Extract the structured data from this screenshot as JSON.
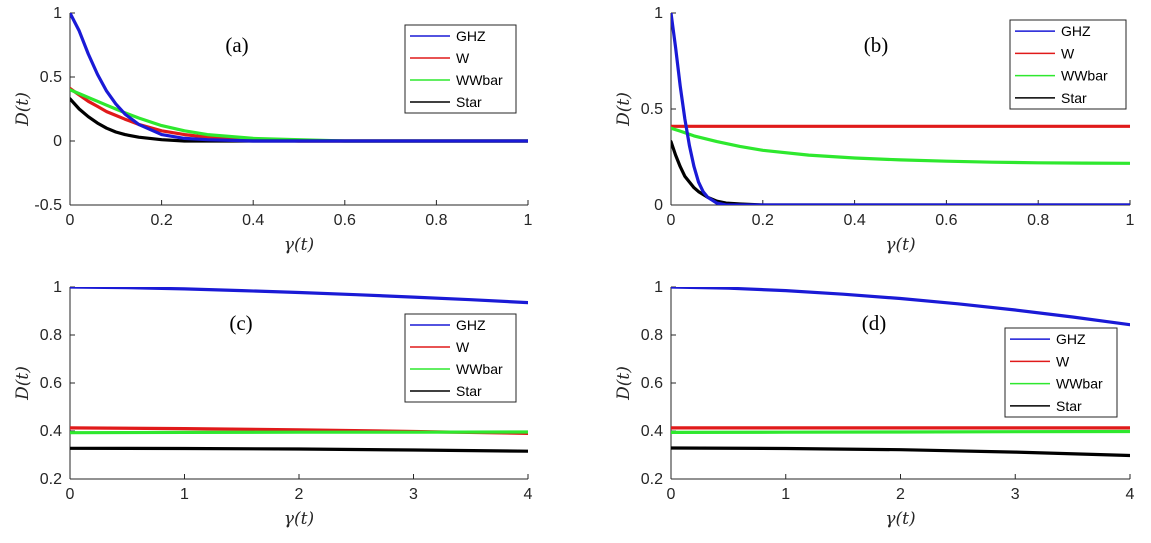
{
  "colors": {
    "GHZ": "#1a1ad6",
    "W": "#e01a1a",
    "WWbar": "#2ee82e",
    "Star": "#000000"
  },
  "chart_data": [
    {
      "type": "line",
      "panel_label": "(a)",
      "xlabel": "γ(t)",
      "ylabel": "D(t)",
      "xlim": [
        0,
        1
      ],
      "ylim": [
        -0.5,
        1
      ],
      "xticks": [
        0,
        0.2,
        0.4,
        0.6,
        0.8,
        1
      ],
      "xtick_labels": [
        "0",
        "0.2",
        "0.4",
        "0.6",
        "0.8",
        "1"
      ],
      "yticks": [
        -0.5,
        0,
        0.5,
        1
      ],
      "ytick_labels": [
        "-0.5",
        "0",
        "0.5",
        "1"
      ],
      "legend": [
        "GHZ",
        "W",
        "WWbar",
        "Star"
      ],
      "legend_position": "top-right",
      "series": [
        {
          "name": "GHZ",
          "x": [
            0,
            0.02,
            0.04,
            0.06,
            0.08,
            0.1,
            0.12,
            0.15,
            0.2,
            0.25,
            0.3,
            0.4,
            0.5,
            0.6,
            0.8,
            1
          ],
          "y": [
            1,
            0.86,
            0.68,
            0.52,
            0.39,
            0.29,
            0.21,
            0.13,
            0.05,
            0.02,
            0.01,
            0,
            0,
            0,
            0,
            0
          ]
        },
        {
          "name": "W",
          "x": [
            0,
            0.02,
            0.04,
            0.06,
            0.08,
            0.1,
            0.12,
            0.15,
            0.2,
            0.25,
            0.3,
            0.4,
            0.5,
            0.6,
            0.8,
            1
          ],
          "y": [
            0.41,
            0.36,
            0.31,
            0.27,
            0.23,
            0.2,
            0.17,
            0.13,
            0.08,
            0.05,
            0.03,
            0.01,
            0,
            0,
            0,
            0
          ]
        },
        {
          "name": "WWbar",
          "x": [
            0,
            0.02,
            0.04,
            0.06,
            0.08,
            0.1,
            0.12,
            0.15,
            0.2,
            0.25,
            0.3,
            0.4,
            0.5,
            0.6,
            0.8,
            1
          ],
          "y": [
            0.4,
            0.37,
            0.34,
            0.31,
            0.28,
            0.25,
            0.22,
            0.18,
            0.12,
            0.08,
            0.05,
            0.02,
            0.01,
            0,
            0,
            0
          ]
        },
        {
          "name": "Star",
          "x": [
            0,
            0.02,
            0.04,
            0.06,
            0.08,
            0.1,
            0.12,
            0.15,
            0.2,
            0.25,
            0.3,
            0.4,
            0.5,
            0.6,
            0.8,
            1
          ],
          "y": [
            0.33,
            0.25,
            0.19,
            0.14,
            0.1,
            0.07,
            0.05,
            0.03,
            0.01,
            0,
            0,
            0,
            0,
            0,
            0,
            0
          ]
        }
      ]
    },
    {
      "type": "line",
      "panel_label": "(b)",
      "xlabel": "γ(t)",
      "ylabel": "D(t)",
      "xlim": [
        0,
        1
      ],
      "ylim": [
        0,
        1
      ],
      "xticks": [
        0,
        0.2,
        0.4,
        0.6,
        0.8,
        1
      ],
      "xtick_labels": [
        "0",
        "0.2",
        "0.4",
        "0.6",
        "0.8",
        "1"
      ],
      "yticks": [
        0,
        0.5,
        1
      ],
      "ytick_labels": [
        "0",
        "0.5",
        "1"
      ],
      "legend": [
        "GHZ",
        "W",
        "WWbar",
        "Star"
      ],
      "legend_position": "top-right",
      "series": [
        {
          "name": "GHZ",
          "x": [
            0,
            0.01,
            0.02,
            0.03,
            0.04,
            0.05,
            0.06,
            0.07,
            0.08,
            0.1,
            0.12,
            0.15,
            0.2,
            0.4,
            1
          ],
          "y": [
            1,
            0.82,
            0.62,
            0.45,
            0.31,
            0.2,
            0.12,
            0.07,
            0.04,
            0.01,
            0,
            0,
            0,
            0,
            0
          ]
        },
        {
          "name": "W",
          "x": [
            0,
            1
          ],
          "y": [
            0.41,
            0.41
          ]
        },
        {
          "name": "WWbar",
          "x": [
            0,
            0.02,
            0.05,
            0.1,
            0.15,
            0.2,
            0.3,
            0.4,
            0.5,
            0.6,
            0.7,
            0.8,
            0.9,
            1
          ],
          "y": [
            0.4,
            0.385,
            0.36,
            0.33,
            0.305,
            0.285,
            0.26,
            0.245,
            0.235,
            0.228,
            0.223,
            0.22,
            0.218,
            0.217
          ]
        },
        {
          "name": "Star",
          "x": [
            0,
            0.01,
            0.02,
            0.03,
            0.04,
            0.05,
            0.06,
            0.08,
            0.1,
            0.12,
            0.15,
            0.2,
            0.3,
            1
          ],
          "y": [
            0.33,
            0.26,
            0.2,
            0.15,
            0.12,
            0.09,
            0.07,
            0.04,
            0.02,
            0.01,
            0.005,
            0,
            0,
            0
          ]
        }
      ]
    },
    {
      "type": "line",
      "panel_label": "(c)",
      "xlabel": "γ(t)",
      "ylabel": "D(t)",
      "xlim": [
        0,
        4
      ],
      "ylim": [
        0.2,
        1
      ],
      "xticks": [
        0,
        1,
        2,
        3,
        4
      ],
      "xtick_labels": [
        "0",
        "1",
        "2",
        "3",
        "4"
      ],
      "yticks": [
        0.2,
        0.4,
        0.6,
        0.8,
        1
      ],
      "ytick_labels": [
        "0.2",
        "0.4",
        "0.6",
        "0.8",
        "1"
      ],
      "legend": [
        "GHZ",
        "W",
        "WWbar",
        "Star"
      ],
      "legend_position": "right",
      "series": [
        {
          "name": "GHZ",
          "x": [
            0,
            0.5,
            1,
            1.5,
            2,
            2.5,
            3,
            3.5,
            4
          ],
          "y": [
            1,
            0.997,
            0.992,
            0.985,
            0.977,
            0.968,
            0.958,
            0.947,
            0.935
          ]
        },
        {
          "name": "W",
          "x": [
            0,
            1,
            2,
            3,
            4
          ],
          "y": [
            0.413,
            0.41,
            0.405,
            0.398,
            0.39
          ]
        },
        {
          "name": "WWbar",
          "x": [
            0,
            1,
            2,
            3,
            4
          ],
          "y": [
            0.393,
            0.394,
            0.395,
            0.395,
            0.396
          ]
        },
        {
          "name": "Star",
          "x": [
            0,
            1,
            2,
            3,
            4
          ],
          "y": [
            0.328,
            0.327,
            0.325,
            0.321,
            0.316
          ]
        }
      ]
    },
    {
      "type": "line",
      "panel_label": "(d)",
      "xlabel": "γ(t)",
      "ylabel": "D(t)",
      "xlim": [
        0,
        4
      ],
      "ylim": [
        0.2,
        1
      ],
      "xticks": [
        0,
        1,
        2,
        3,
        4
      ],
      "xtick_labels": [
        "0",
        "1",
        "2",
        "3",
        "4"
      ],
      "yticks": [
        0.2,
        0.4,
        0.6,
        0.8,
        1
      ],
      "ytick_labels": [
        "0.2",
        "0.4",
        "0.6",
        "0.8",
        "1"
      ],
      "legend": [
        "GHZ",
        "W",
        "WWbar",
        "Star"
      ],
      "legend_position": "right",
      "series": [
        {
          "name": "GHZ",
          "x": [
            0,
            0.5,
            1,
            1.5,
            2,
            2.5,
            3,
            3.5,
            4
          ],
          "y": [
            1,
            0.995,
            0.985,
            0.97,
            0.952,
            0.93,
            0.904,
            0.875,
            0.843
          ]
        },
        {
          "name": "W",
          "x": [
            0,
            1,
            2,
            3,
            4
          ],
          "y": [
            0.413,
            0.413,
            0.413,
            0.413,
            0.413
          ]
        },
        {
          "name": "WWbar",
          "x": [
            0,
            1,
            2,
            3,
            4
          ],
          "y": [
            0.394,
            0.395,
            0.396,
            0.397,
            0.398
          ]
        },
        {
          "name": "Star",
          "x": [
            0,
            1,
            2,
            3,
            4
          ],
          "y": [
            0.329,
            0.327,
            0.322,
            0.312,
            0.298
          ]
        }
      ]
    }
  ]
}
